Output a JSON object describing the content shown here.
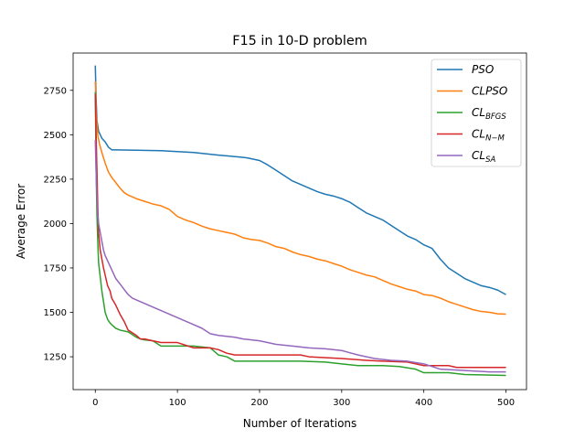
{
  "chart_data": {
    "type": "line",
    "title": "F15 in 10-D problem",
    "xlabel": "Number of Iterations",
    "ylabel": "Average Error",
    "xlim": [
      -27,
      525
    ],
    "ylim": [
      1065,
      2960
    ],
    "xticks": [
      0,
      100,
      200,
      300,
      400,
      500
    ],
    "yticks": [
      1250,
      1500,
      1750,
      2000,
      2250,
      2500,
      2750
    ],
    "grid": false,
    "legend_position": "top-right",
    "series": [
      {
        "name": "PSO",
        "legend_label": {
          "base": "PSO",
          "sub": ""
        },
        "color": "#1f77b4",
        "points": [
          [
            0,
            2890
          ],
          [
            1,
            2700
          ],
          [
            2,
            2580
          ],
          [
            4,
            2520
          ],
          [
            8,
            2480
          ],
          [
            12,
            2460
          ],
          [
            16,
            2430
          ],
          [
            20,
            2415
          ],
          [
            50,
            2413
          ],
          [
            80,
            2410
          ],
          [
            100,
            2405
          ],
          [
            120,
            2400
          ],
          [
            150,
            2385
          ],
          [
            175,
            2375
          ],
          [
            185,
            2370
          ],
          [
            200,
            2355
          ],
          [
            210,
            2330
          ],
          [
            220,
            2300
          ],
          [
            230,
            2270
          ],
          [
            240,
            2240
          ],
          [
            250,
            2220
          ],
          [
            260,
            2200
          ],
          [
            270,
            2180
          ],
          [
            280,
            2165
          ],
          [
            290,
            2155
          ],
          [
            300,
            2140
          ],
          [
            310,
            2120
          ],
          [
            320,
            2090
          ],
          [
            330,
            2060
          ],
          [
            340,
            2040
          ],
          [
            350,
            2020
          ],
          [
            360,
            1990
          ],
          [
            370,
            1960
          ],
          [
            380,
            1930
          ],
          [
            390,
            1910
          ],
          [
            400,
            1880
          ],
          [
            410,
            1860
          ],
          [
            420,
            1800
          ],
          [
            430,
            1750
          ],
          [
            440,
            1720
          ],
          [
            450,
            1690
          ],
          [
            460,
            1670
          ],
          [
            470,
            1650
          ],
          [
            480,
            1640
          ],
          [
            490,
            1625
          ],
          [
            500,
            1600
          ]
        ]
      },
      {
        "name": "CLPSO",
        "legend_label": {
          "base": "CLPSO",
          "sub": ""
        },
        "color": "#ff7f0e",
        "points": [
          [
            0,
            2800
          ],
          [
            1,
            2620
          ],
          [
            2,
            2560
          ],
          [
            3,
            2500
          ],
          [
            5,
            2450
          ],
          [
            8,
            2400
          ],
          [
            12,
            2340
          ],
          [
            16,
            2290
          ],
          [
            20,
            2260
          ],
          [
            25,
            2230
          ],
          [
            30,
            2200
          ],
          [
            35,
            2175
          ],
          [
            40,
            2160
          ],
          [
            50,
            2140
          ],
          [
            60,
            2125
          ],
          [
            70,
            2110
          ],
          [
            80,
            2100
          ],
          [
            90,
            2080
          ],
          [
            100,
            2040
          ],
          [
            110,
            2020
          ],
          [
            120,
            2005
          ],
          [
            130,
            1985
          ],
          [
            140,
            1970
          ],
          [
            150,
            1960
          ],
          [
            160,
            1950
          ],
          [
            170,
            1940
          ],
          [
            180,
            1920
          ],
          [
            190,
            1910
          ],
          [
            200,
            1905
          ],
          [
            210,
            1890
          ],
          [
            220,
            1870
          ],
          [
            230,
            1860
          ],
          [
            240,
            1840
          ],
          [
            250,
            1825
          ],
          [
            260,
            1815
          ],
          [
            270,
            1800
          ],
          [
            280,
            1790
          ],
          [
            290,
            1775
          ],
          [
            300,
            1760
          ],
          [
            310,
            1740
          ],
          [
            320,
            1725
          ],
          [
            330,
            1710
          ],
          [
            340,
            1700
          ],
          [
            350,
            1680
          ],
          [
            360,
            1660
          ],
          [
            370,
            1645
          ],
          [
            380,
            1630
          ],
          [
            390,
            1620
          ],
          [
            400,
            1600
          ],
          [
            410,
            1595
          ],
          [
            420,
            1580
          ],
          [
            430,
            1560
          ],
          [
            440,
            1545
          ],
          [
            450,
            1530
          ],
          [
            460,
            1515
          ],
          [
            470,
            1505
          ],
          [
            480,
            1500
          ],
          [
            490,
            1492
          ],
          [
            500,
            1490
          ]
        ]
      },
      {
        "name": "CL_BFGS",
        "legend_label": {
          "base": "CL",
          "sub": "BFGS"
        },
        "color": "#2ca02c",
        "points": [
          [
            0,
            2740
          ],
          [
            1,
            2300
          ],
          [
            2,
            2050
          ],
          [
            3,
            1900
          ],
          [
            4,
            1780
          ],
          [
            6,
            1700
          ],
          [
            8,
            1620
          ],
          [
            10,
            1560
          ],
          [
            12,
            1500
          ],
          [
            15,
            1460
          ],
          [
            18,
            1440
          ],
          [
            20,
            1430
          ],
          [
            25,
            1410
          ],
          [
            30,
            1400
          ],
          [
            40,
            1390
          ],
          [
            50,
            1360
          ],
          [
            55,
            1350
          ],
          [
            60,
            1345
          ],
          [
            70,
            1340
          ],
          [
            80,
            1310
          ],
          [
            100,
            1310
          ],
          [
            120,
            1310
          ],
          [
            140,
            1300
          ],
          [
            150,
            1260
          ],
          [
            160,
            1250
          ],
          [
            170,
            1225
          ],
          [
            200,
            1225
          ],
          [
            250,
            1225
          ],
          [
            280,
            1220
          ],
          [
            300,
            1210
          ],
          [
            320,
            1200
          ],
          [
            350,
            1200
          ],
          [
            370,
            1195
          ],
          [
            390,
            1180
          ],
          [
            400,
            1160
          ],
          [
            430,
            1160
          ],
          [
            450,
            1150
          ],
          [
            500,
            1145
          ]
        ]
      },
      {
        "name": "CL_N-M",
        "legend_label": {
          "base": "CL",
          "sub": "N−M"
        },
        "color": "#d62728",
        "points": [
          [
            0,
            2730
          ],
          [
            1,
            2500
          ],
          [
            2,
            2300
          ],
          [
            3,
            2100
          ],
          [
            4,
            1950
          ],
          [
            6,
            1850
          ],
          [
            8,
            1800
          ],
          [
            10,
            1750
          ],
          [
            12,
            1710
          ],
          [
            15,
            1650
          ],
          [
            18,
            1620
          ],
          [
            20,
            1580
          ],
          [
            25,
            1540
          ],
          [
            30,
            1490
          ],
          [
            35,
            1450
          ],
          [
            40,
            1400
          ],
          [
            50,
            1370
          ],
          [
            55,
            1350
          ],
          [
            60,
            1350
          ],
          [
            70,
            1340
          ],
          [
            80,
            1330
          ],
          [
            100,
            1330
          ],
          [
            120,
            1300
          ],
          [
            140,
            1300
          ],
          [
            150,
            1290
          ],
          [
            160,
            1270
          ],
          [
            170,
            1260
          ],
          [
            200,
            1260
          ],
          [
            250,
            1260
          ],
          [
            260,
            1250
          ],
          [
            300,
            1240
          ],
          [
            330,
            1230
          ],
          [
            350,
            1225
          ],
          [
            380,
            1220
          ],
          [
            400,
            1200
          ],
          [
            430,
            1200
          ],
          [
            440,
            1190
          ],
          [
            470,
            1190
          ],
          [
            500,
            1190
          ]
        ]
      },
      {
        "name": "CL_SA",
        "legend_label": {
          "base": "CL",
          "sub": "SA"
        },
        "color": "#9467bd",
        "points": [
          [
            0,
            2470
          ],
          [
            1,
            2300
          ],
          [
            2,
            2150
          ],
          [
            3,
            2050
          ],
          [
            4,
            2000
          ],
          [
            6,
            1950
          ],
          [
            8,
            1900
          ],
          [
            10,
            1850
          ],
          [
            12,
            1820
          ],
          [
            15,
            1790
          ],
          [
            18,
            1760
          ],
          [
            20,
            1740
          ],
          [
            25,
            1690
          ],
          [
            30,
            1660
          ],
          [
            35,
            1630
          ],
          [
            40,
            1600
          ],
          [
            45,
            1580
          ],
          [
            50,
            1570
          ],
          [
            60,
            1550
          ],
          [
            70,
            1530
          ],
          [
            80,
            1510
          ],
          [
            90,
            1490
          ],
          [
            100,
            1470
          ],
          [
            110,
            1450
          ],
          [
            120,
            1430
          ],
          [
            130,
            1410
          ],
          [
            140,
            1380
          ],
          [
            150,
            1370
          ],
          [
            170,
            1360
          ],
          [
            180,
            1350
          ],
          [
            200,
            1340
          ],
          [
            220,
            1320
          ],
          [
            240,
            1310
          ],
          [
            260,
            1300
          ],
          [
            280,
            1295
          ],
          [
            300,
            1285
          ],
          [
            320,
            1260
          ],
          [
            340,
            1240
          ],
          [
            360,
            1230
          ],
          [
            380,
            1225
          ],
          [
            400,
            1210
          ],
          [
            420,
            1180
          ],
          [
            440,
            1175
          ],
          [
            460,
            1170
          ],
          [
            480,
            1165
          ],
          [
            500,
            1165
          ]
        ]
      }
    ]
  }
}
